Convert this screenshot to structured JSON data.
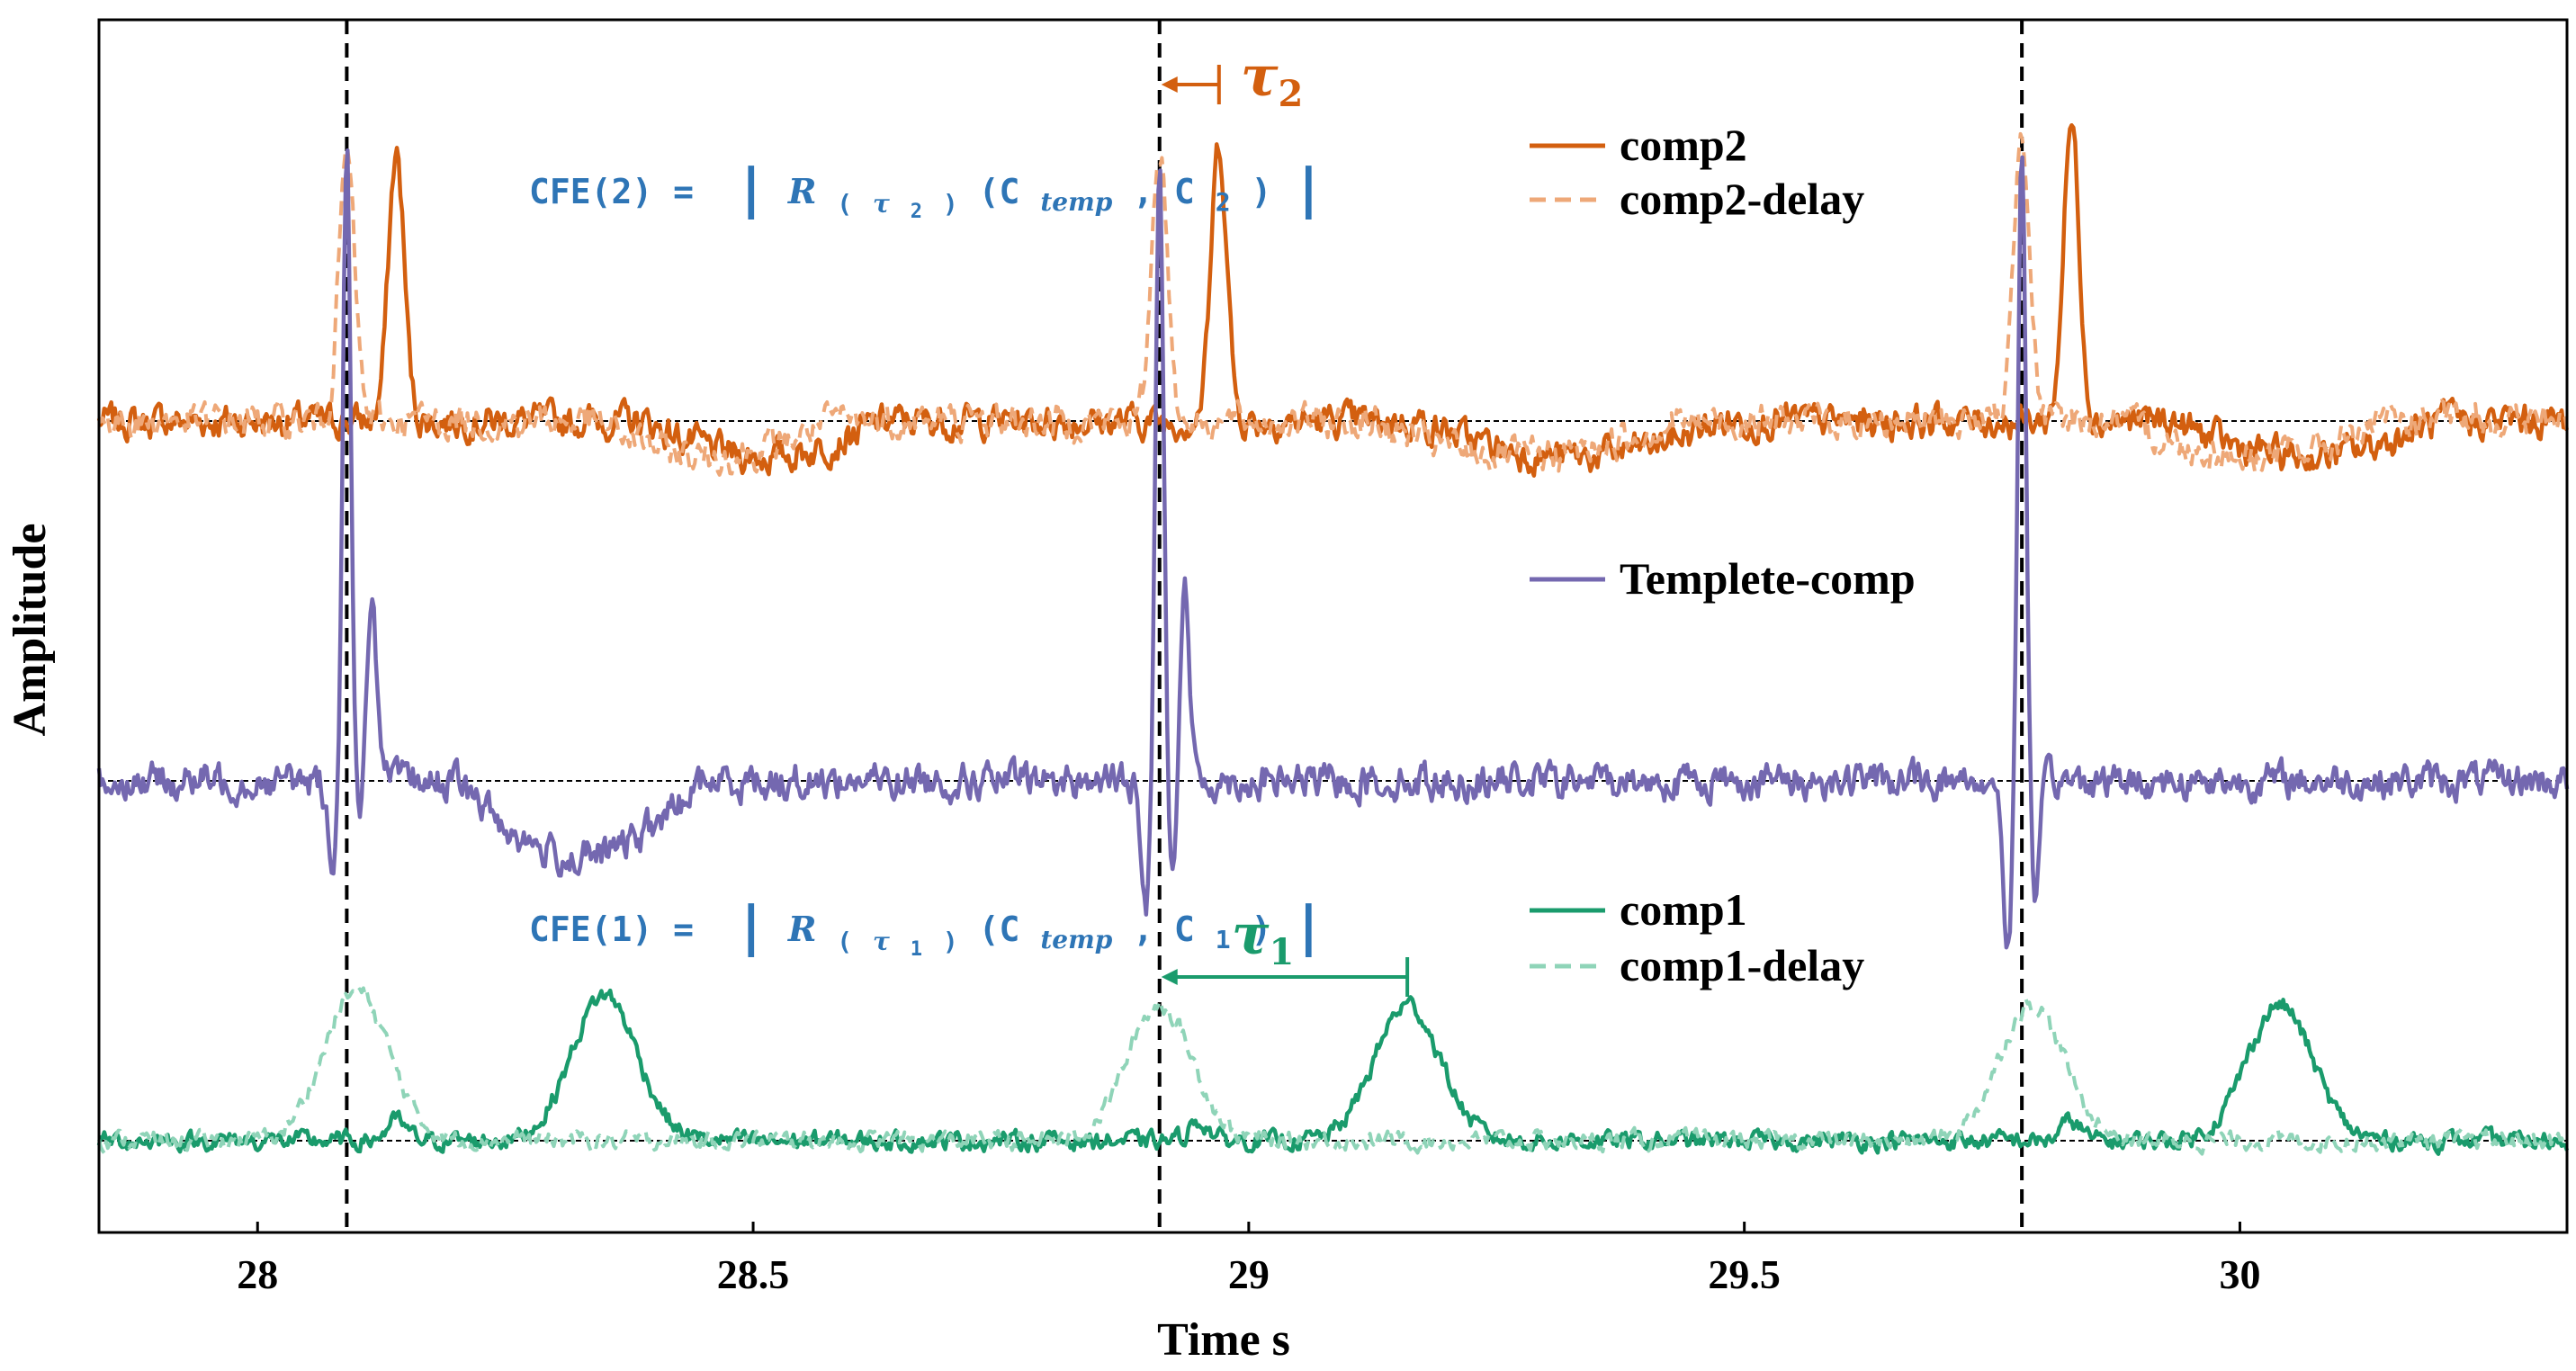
{
  "chart_data": {
    "type": "line",
    "title": "",
    "xlabel": "Time s",
    "ylabel": "Amplitude",
    "xlim": [
      27.84,
      30.33
    ],
    "xticks": [
      28,
      28.5,
      29,
      29.5,
      30
    ],
    "xtick_labels": [
      "28",
      "28.5",
      "29",
      "29.5",
      "30"
    ],
    "yticks": [],
    "grid": false,
    "event_lines_x": [
      28.09,
      28.91,
      29.78
    ],
    "baselines": {
      "comp2": 0.0,
      "template": 0.0,
      "comp1": 0.0
    },
    "series": [
      {
        "name": "comp2",
        "style": "solid",
        "color": "#d35f0f",
        "track": "top",
        "peaks": [
          {
            "x": 28.14,
            "value": 0.9
          },
          {
            "x": 28.97,
            "value": 0.93
          },
          {
            "x": 29.83,
            "value": 1.0
          }
        ],
        "sags": [
          {
            "from": 28.39,
            "to": 28.63,
            "value": -0.12
          },
          {
            "from": 29.17,
            "to": 29.48,
            "value": -0.12
          },
          {
            "from": 29.93,
            "to": 30.2,
            "value": -0.12
          }
        ]
      },
      {
        "name": "comp2-delay",
        "style": "dashed",
        "color": "#eea878",
        "track": "top",
        "peaks": [
          {
            "x": 28.09,
            "value": 0.9
          },
          {
            "x": 28.91,
            "value": 0.93
          },
          {
            "x": 29.78,
            "value": 1.0
          }
        ],
        "sags": [
          {
            "from": 28.34,
            "to": 28.58,
            "value": -0.12
          },
          {
            "from": 29.12,
            "to": 29.43,
            "value": -0.12
          },
          {
            "from": 29.88,
            "to": 30.15,
            "value": -0.12
          }
        ]
      },
      {
        "name": "Templete-comp",
        "style": "solid",
        "color": "#7468b0",
        "track": "middle",
        "spikes": [
          {
            "x": 28.09,
            "up": 1.0,
            "down": -0.12,
            "ringing": 0.3
          },
          {
            "x": 28.91,
            "up": 1.0,
            "down": -0.2,
            "ringing": 0.3
          },
          {
            "x": 29.78,
            "up": 1.0,
            "down": -0.25,
            "ringing": 0.0
          }
        ],
        "sags": [
          {
            "from": 28.2,
            "to": 28.45,
            "value": -0.12
          }
        ]
      },
      {
        "name": "comp1",
        "style": "solid",
        "color": "#1a9b6c",
        "track": "bottom",
        "peaks": [
          {
            "x": 28.35,
            "value": 0.9
          },
          {
            "x": 29.16,
            "value": 0.84
          },
          {
            "x": 30.04,
            "value": 0.84
          }
        ]
      },
      {
        "name": "comp1-delay",
        "style": "dashed",
        "color": "#8fd4b8",
        "track": "bottom",
        "peaks": [
          {
            "x": 28.1,
            "value": 0.92
          },
          {
            "x": 28.91,
            "value": 0.84
          },
          {
            "x": 29.79,
            "value": 0.84
          }
        ]
      }
    ],
    "legend": [
      {
        "label": "comp2",
        "style": "solid",
        "color": "#d35f0f"
      },
      {
        "label": "comp2-delay",
        "style": "dashed",
        "color": "#eea878"
      },
      {
        "label": "Templete-comp",
        "style": "solid",
        "color": "#7468b0"
      },
      {
        "label": "comp1",
        "style": "solid",
        "color": "#1a9b6c"
      },
      {
        "label": "comp1-delay",
        "style": "dashed",
        "color": "#8fd4b8"
      }
    ],
    "annotations": {
      "cfe2": {
        "prefix": "CFE(2) = ",
        "R": "R",
        "tau": "τ",
        "tau_sub": "2",
        "open": "(C",
        "temp": "temp",
        "comma": ", C",
        "c_sub": "2",
        "close": ")"
      },
      "cfe1": {
        "prefix": "CFE(1) = ",
        "R": "R",
        "tau": "τ",
        "tau_sub": "1",
        "open": "(C",
        "temp": "temp",
        "comma": ", C",
        "c_sub": "1",
        "close": ")"
      },
      "tau2": {
        "symbol": "τ",
        "sub": "2",
        "from_x": 28.91,
        "to_x": 28.97
      },
      "tau1": {
        "symbol": "τ",
        "sub": "1",
        "from_x": 28.91,
        "to_x": 29.16
      }
    }
  }
}
